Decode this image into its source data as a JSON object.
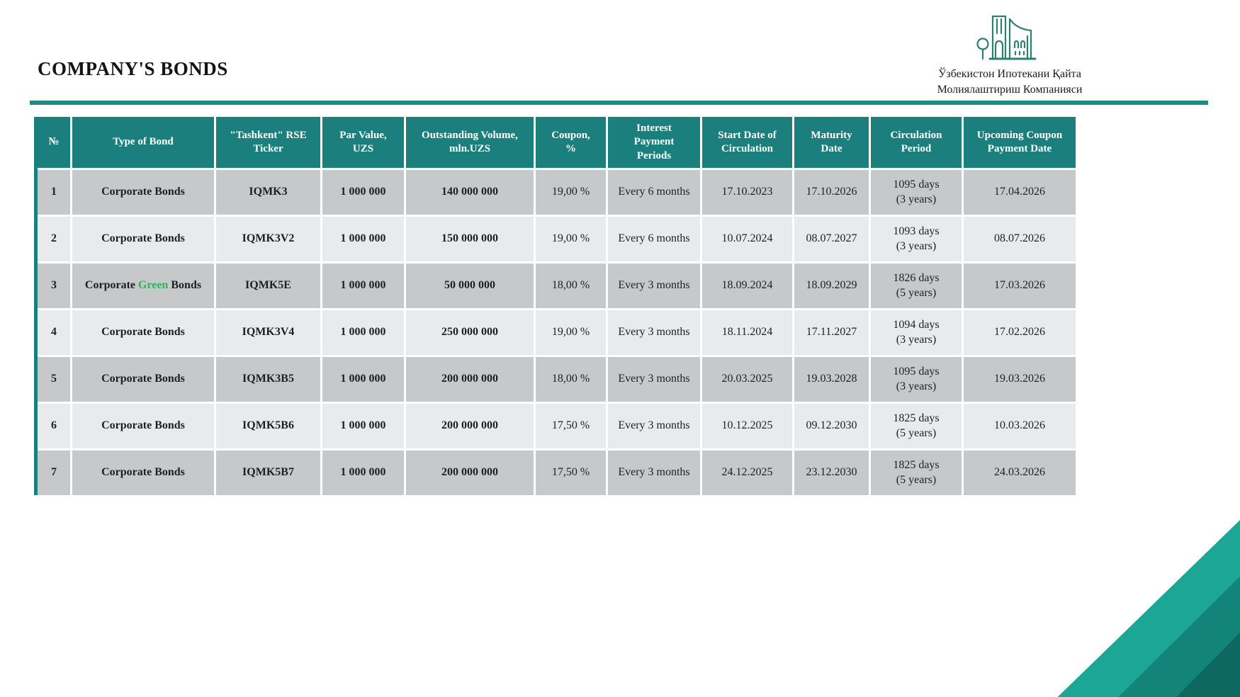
{
  "page": {
    "title": "COMPANY'S BONDS"
  },
  "logo": {
    "line1": "Ўзбекистон Ипотекани Қайта",
    "line2": "Молиялаштириш Компанияси"
  },
  "colors": {
    "header_teal": "#1B807D",
    "rule_teal": "#1E8A88",
    "row_dark": "#C7C8CA",
    "row_light": "#E9EAEC",
    "green_accent": "#2FB457",
    "logo_teal": "#2E7F70",
    "corner_light": "#1BA696",
    "corner_mid": "#138578",
    "corner_dark": "#0D695F"
  },
  "table": {
    "headers": [
      "№",
      "Type of Bond",
      "\"Tashkent\" RSE\nTicker",
      "Par Value,\nUZS",
      "Outstanding Volume,\nmln.UZS",
      "Coupon,\n%",
      "Interest\nPayment\nPeriods",
      "Start Date of\nCirculation",
      "Maturity\nDate",
      "Circulation\nPeriod",
      "Upcoming Coupon\nPayment Date"
    ],
    "rows": [
      {
        "num": "1",
        "bond_type": {
          "pre": "Corporate Bonds",
          "green": "",
          "post": ""
        },
        "ticker": "IQMK3",
        "par_value": "1 000 000",
        "outstanding": "140 000 000",
        "coupon": "19,00 %",
        "interest_period": "Every 6 months",
        "start_date": "17.10.2023",
        "maturity_date": "17.10.2026",
        "circulation_period": "1095 days\n(3 years)",
        "upcoming_coupon": "17.04.2026"
      },
      {
        "num": "2",
        "bond_type": {
          "pre": "Corporate Bonds",
          "green": "",
          "post": ""
        },
        "ticker": "IQMK3V2",
        "par_value": "1 000 000",
        "outstanding": "150 000 000",
        "coupon": "19,00 %",
        "interest_period": "Every 6 months",
        "start_date": "10.07.2024",
        "maturity_date": "08.07.2027",
        "circulation_period": "1093 days\n(3 years)",
        "upcoming_coupon": "08.07.2026"
      },
      {
        "num": "3",
        "bond_type": {
          "pre": "Corporate ",
          "green": "Green",
          "post": " Bonds"
        },
        "ticker": "IQMK5E",
        "par_value": "1 000 000",
        "outstanding": "50 000 000",
        "coupon": "18,00 %",
        "interest_period": "Every 3 months",
        "start_date": "18.09.2024",
        "maturity_date": "18.09.2029",
        "circulation_period": "1826 days\n(5 years)",
        "upcoming_coupon": "17.03.2026"
      },
      {
        "num": "4",
        "bond_type": {
          "pre": "Corporate Bonds",
          "green": "",
          "post": ""
        },
        "ticker": "IQMK3V4",
        "par_value": "1 000 000",
        "outstanding": "250 000 000",
        "coupon": "19,00 %",
        "interest_period": "Every 3 months",
        "start_date": "18.11.2024",
        "maturity_date": "17.11.2027",
        "circulation_period": "1094 days\n(3 years)",
        "upcoming_coupon": "17.02.2026"
      },
      {
        "num": "5",
        "bond_type": {
          "pre": "Corporate Bonds",
          "green": "",
          "post": ""
        },
        "ticker": "IQMK3B5",
        "par_value": "1 000 000",
        "outstanding": "200 000 000",
        "coupon": "18,00 %",
        "interest_period": "Every 3 months",
        "start_date": "20.03.2025",
        "maturity_date": "19.03.2028",
        "circulation_period": "1095 days\n(3 years)",
        "upcoming_coupon": "19.03.2026"
      },
      {
        "num": "6",
        "bond_type": {
          "pre": "Corporate Bonds",
          "green": "",
          "post": ""
        },
        "ticker": "IQMK5B6",
        "par_value": "1 000 000",
        "outstanding": "200 000 000",
        "coupon": "17,50 %",
        "interest_period": "Every 3 months",
        "start_date": "10.12.2025",
        "maturity_date": "09.12.2030",
        "circulation_period": "1825 days\n(5 years)",
        "upcoming_coupon": "10.03.2026"
      },
      {
        "num": "7",
        "bond_type": {
          "pre": "Corporate Bonds",
          "green": "",
          "post": ""
        },
        "ticker": "IQMK5B7",
        "par_value": "1 000 000",
        "outstanding": "200 000 000",
        "coupon": "17,50 %",
        "interest_period": "Every 3 months",
        "start_date": "24.12.2025",
        "maturity_date": "23.12.2030",
        "circulation_period": "1825 days\n(5 years)",
        "upcoming_coupon": "24.03.2026"
      }
    ]
  }
}
